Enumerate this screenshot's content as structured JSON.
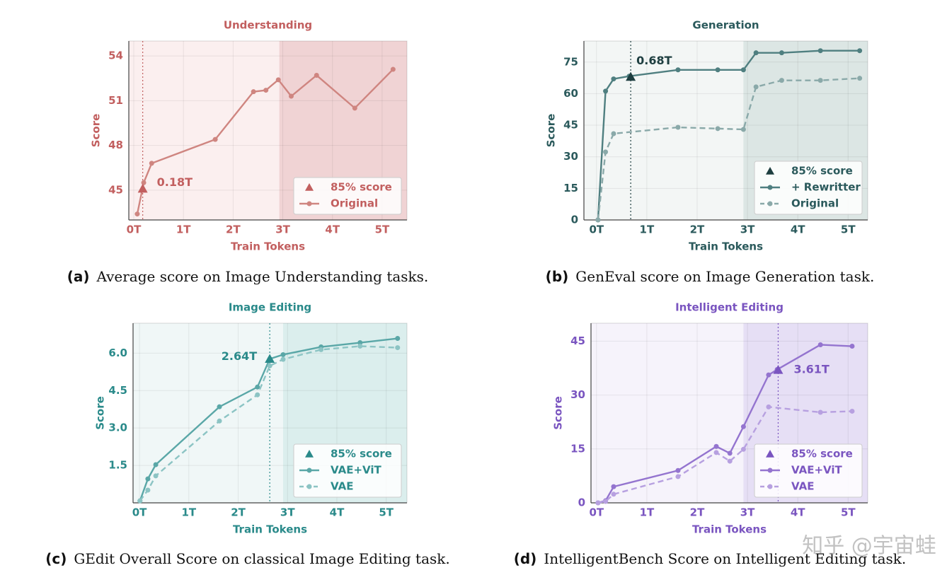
{
  "chart_data": [
    {
      "type": "line",
      "title": "Understanding",
      "xlabel": "Train Tokens",
      "ylabel": "Score",
      "title_color": "#c25f5f",
      "background": "#fbefef",
      "highlight_start": 2.93,
      "highlight_color": "#f0d3d4",
      "xlim": [
        -0.1,
        5.5
      ],
      "ylim": [
        43,
        55
      ],
      "grid": true,
      "legend": "lower right",
      "xticks": [
        {
          "value": 0,
          "label": "0T"
        },
        {
          "value": 1,
          "label": "1T"
        },
        {
          "value": 2,
          "label": "2T"
        },
        {
          "value": 3,
          "label": "3T"
        },
        {
          "value": 4,
          "label": "4T"
        },
        {
          "value": 5,
          "label": "5T"
        }
      ],
      "yticks": [
        45,
        48,
        51,
        54
      ],
      "threshold": {
        "name": "85% score",
        "x": 0.18,
        "y": 45.1,
        "label": "0.18T",
        "color": "#c25f5f"
      },
      "series": [
        {
          "name": "Original",
          "color": "#cf8580",
          "dash": false,
          "x": [
            0.07,
            0.2,
            0.36,
            1.64,
            2.41,
            2.66,
            2.91,
            3.17,
            3.68,
            4.45,
            5.22
          ],
          "values": [
            43.4,
            45.5,
            46.8,
            48.4,
            51.6,
            51.7,
            52.4,
            51.3,
            52.7,
            50.5,
            53.1
          ]
        }
      ]
    },
    {
      "type": "line",
      "title": "Generation",
      "xlabel": "Train Tokens",
      "ylabel": "Score",
      "title_color": "#2b5a5c",
      "background": "#f3f6f5",
      "highlight_start": 2.92,
      "highlight_color": "#dce6e4",
      "xlim": [
        -0.25,
        5.39
      ],
      "ylim": [
        0,
        85
      ],
      "grid": true,
      "legend": "lower right",
      "xticks": [
        {
          "value": 0,
          "label": "0T"
        },
        {
          "value": 1,
          "label": "1T"
        },
        {
          "value": 2,
          "label": "2T"
        },
        {
          "value": 3,
          "label": "3T"
        },
        {
          "value": 4,
          "label": "4T"
        },
        {
          "value": 5,
          "label": "5T"
        }
      ],
      "yticks": [
        0,
        15,
        30,
        45,
        60,
        75
      ],
      "threshold": {
        "name": "85% score",
        "x": 0.68,
        "y": 68,
        "label": "0.68T",
        "color": "#1e3e40"
      },
      "series": [
        {
          "name": "+ Rewritter",
          "color": "#4f7f80",
          "dash": false,
          "x": [
            0.03,
            0.18,
            0.34,
            0.65,
            1.62,
            2.41,
            2.92,
            3.17,
            3.68,
            4.45,
            5.23
          ],
          "values": [
            0,
            61.2,
            67,
            68.3,
            71.3,
            71.3,
            71.3,
            79.4,
            79.4,
            80.4,
            80.4
          ]
        },
        {
          "name": "Original",
          "color": "#8aa9a9",
          "dash": true,
          "x": [
            0.03,
            0.18,
            0.34,
            1.62,
            2.41,
            2.92,
            3.17,
            3.68,
            4.45,
            5.23
          ],
          "values": [
            0,
            32.3,
            41,
            44,
            43.4,
            43,
            63.2,
            66.3,
            66.3,
            67.3
          ]
        }
      ]
    },
    {
      "type": "line",
      "title": "Image Editing",
      "xlabel": "Train Tokens",
      "ylabel": "Score",
      "title_color": "#2a8a8a",
      "background": "#f0f7f7",
      "highlight_start": 2.91,
      "highlight_color": "#dbeeed",
      "xlim": [
        -0.13,
        5.42
      ],
      "ylim": [
        0,
        7.2
      ],
      "grid": true,
      "legend": "lower right",
      "xticks": [
        {
          "value": 0,
          "label": "0T"
        },
        {
          "value": 1,
          "label": "1T"
        },
        {
          "value": 2,
          "label": "2T"
        },
        {
          "value": 3,
          "label": "3T"
        },
        {
          "value": 4,
          "label": "4T"
        },
        {
          "value": 5,
          "label": "5T"
        }
      ],
      "yticks": [
        1.5,
        {
          "value": 3,
          "label": "3.0"
        },
        4.5,
        {
          "value": 6,
          "label": "6.0"
        }
      ],
      "threshold": {
        "name": "85% score",
        "x": 2.64,
        "y": 5.77,
        "label": "2.64T",
        "color": "#2a8a8a"
      },
      "series": [
        {
          "name": "VAE+ViT",
          "color": "#5aa7a7",
          "dash": false,
          "x": [
            0.01,
            0.17,
            0.33,
            1.62,
            2.39,
            2.64,
            2.91,
            3.68,
            4.47,
            5.23
          ],
          "values": [
            0.08,
            0.96,
            1.53,
            3.85,
            4.64,
            5.77,
            5.94,
            6.25,
            6.42,
            6.59
          ]
        },
        {
          "name": "VAE",
          "color": "#8cc4c4",
          "dash": true,
          "x": [
            0.01,
            0.17,
            0.33,
            1.62,
            2.39,
            2.64,
            2.91,
            3.68,
            4.47,
            5.23
          ],
          "values": [
            0.08,
            0.51,
            1.08,
            3.28,
            4.33,
            5.49,
            5.75,
            6.14,
            6.28,
            6.22
          ]
        }
      ]
    },
    {
      "type": "line",
      "title": "Intelligent Editing",
      "xlabel": "Train Tokens",
      "ylabel": "Score",
      "title_color": "#7a55c0",
      "background": "#f6f3fb",
      "highlight_start": 2.92,
      "highlight_color": "#e6dff5",
      "xlim": [
        -0.11,
        5.39
      ],
      "ylim": [
        0,
        50
      ],
      "grid": true,
      "legend": "lower right",
      "xticks": [
        {
          "value": 0,
          "label": "0T"
        },
        {
          "value": 1,
          "label": "1T"
        },
        {
          "value": 2,
          "label": "2T"
        },
        {
          "value": 3,
          "label": "3T"
        },
        {
          "value": 4,
          "label": "4T"
        },
        {
          "value": 5,
          "label": "5T"
        }
      ],
      "yticks": [
        0,
        15,
        30,
        45
      ],
      "threshold": {
        "name": "85% score",
        "x": 3.61,
        "y": 37,
        "label": "3.61T",
        "color": "#7a55c0"
      },
      "series": [
        {
          "name": "VAE+ViT",
          "color": "#9474cf",
          "dash": false,
          "x": [
            0.03,
            0.18,
            0.34,
            1.62,
            2.38,
            2.65,
            2.92,
            3.42,
            3.59,
            4.45,
            5.08
          ],
          "values": [
            0,
            0.6,
            4.5,
            9,
            15.7,
            13.8,
            21.2,
            35.6,
            37.1,
            44,
            43.6
          ]
        },
        {
          "name": "VAE",
          "color": "#b7a0e0",
          "dash": true,
          "x": [
            0.03,
            0.18,
            0.34,
            1.62,
            2.38,
            2.65,
            2.92,
            3.42,
            4.45,
            5.08
          ],
          "values": [
            0,
            0.4,
            2.4,
            7.3,
            14,
            11.6,
            14.9,
            26.7,
            25.2,
            25.5
          ]
        }
      ]
    }
  ],
  "captions": [
    {
      "label": "(a)",
      "text": "Average score on Image Understanding tasks."
    },
    {
      "label": "(b)",
      "text": "GenEval score on Image Generation task."
    },
    {
      "label": "(c)",
      "text": "GEdit Overall Score on classical Image Editing task."
    },
    {
      "label": "(d)",
      "text": "IntelligentBench Score on Intelligent Editing task."
    }
  ],
  "watermark": "知乎 @宇宙蛙"
}
